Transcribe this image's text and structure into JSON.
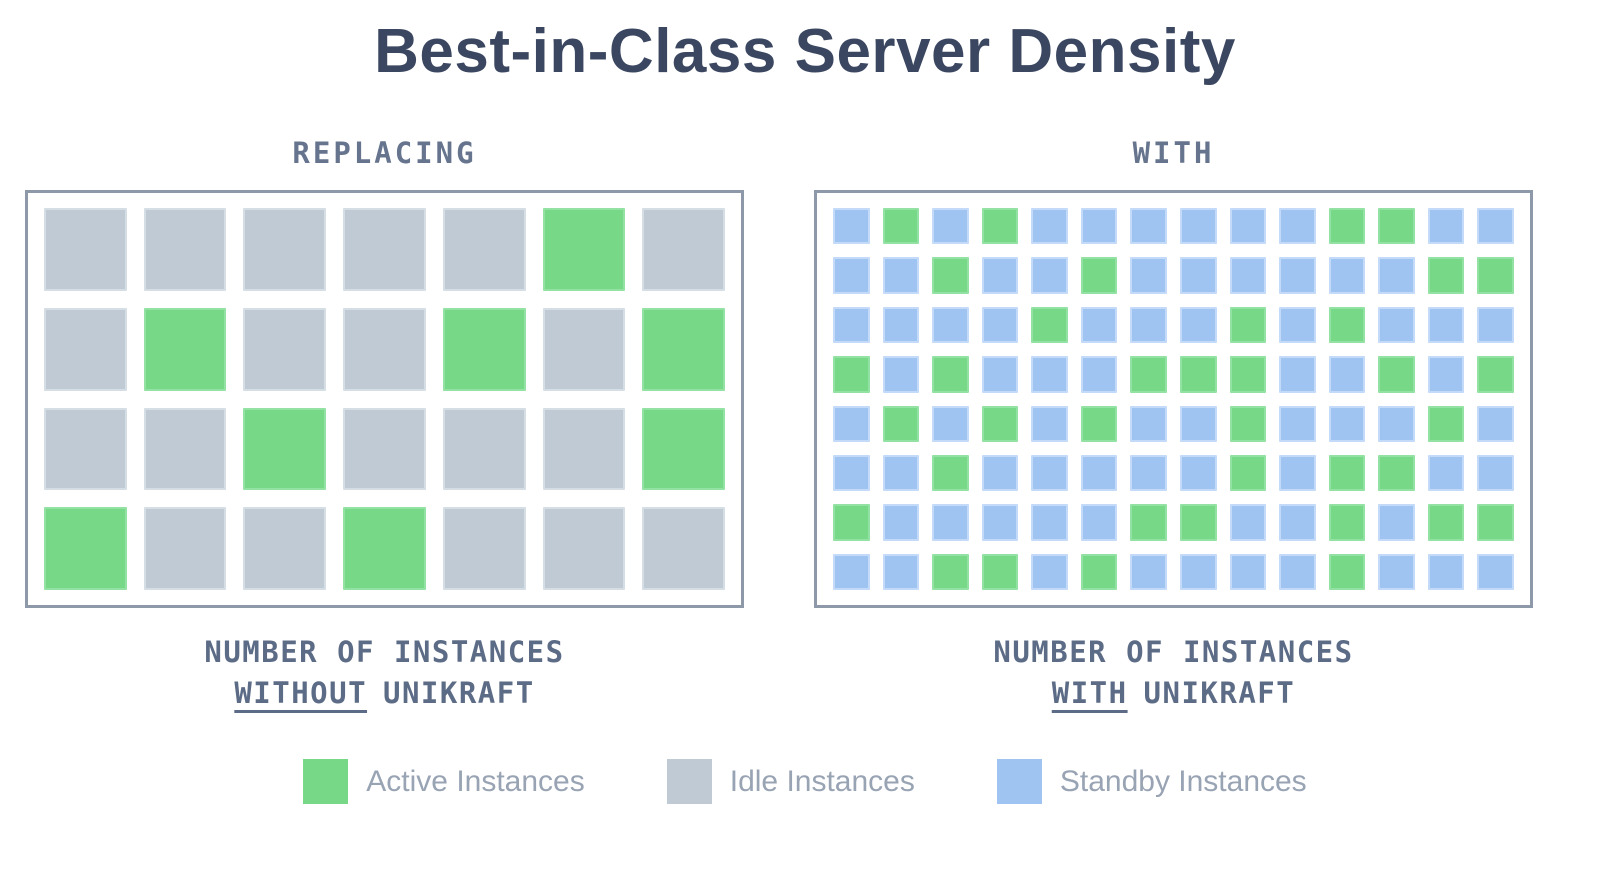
{
  "title": "Best-in-Class Server Density",
  "colors": {
    "active": "#77d987",
    "idle": "#bfcad4",
    "standby": "#9fc4f2",
    "grid_border": "#8d99a9",
    "title_text": "#3b4760",
    "header_text": "#66748e",
    "caption_text": "#5d6c86",
    "legend_text": "#98a3b3"
  },
  "panels": [
    {
      "header": "REPLACING",
      "caption_line1": "NUMBER OF INSTANCES",
      "caption_emphasis": "WITHOUT",
      "caption_suffix": "UNIKRAFT"
    },
    {
      "header": "WITH",
      "caption_line1": "NUMBER OF INSTANCES",
      "caption_emphasis": "WITH",
      "caption_suffix": "UNIKRAFT"
    }
  ],
  "legend": [
    {
      "type": "active",
      "label": "Active Instances"
    },
    {
      "type": "idle",
      "label": "Idle Instances"
    },
    {
      "type": "standby",
      "label": "Standby Instances"
    }
  ],
  "chart_data": [
    {
      "type": "waffle",
      "label": "REPLACING",
      "caption": "NUMBER OF INSTANCES WITHOUT UNIKRAFT",
      "columns": 7,
      "rows": 4,
      "cell_key": {
        "A": "Active Instances",
        "I": "Idle Instances",
        "S": "Standby Instances"
      },
      "cell_codes": [
        "IIIIIAI",
        "IAIIAIA",
        "IIAIIIA",
        "AIIAIII"
      ],
      "counts": {
        "active": 8,
        "idle": 20,
        "standby": 0
      },
      "total": 28
    },
    {
      "type": "waffle",
      "label": "WITH",
      "caption": "NUMBER OF INSTANCES WITH UNIKRAFT",
      "columns": 14,
      "rows": 8,
      "cell_key": {
        "A": "Active Instances",
        "I": "Idle Instances",
        "S": "Standby Instances"
      },
      "cell_codes": [
        "SASASSSSSSAASS",
        "SSASSASSSSSSAA",
        "SSSSASSSASASSS",
        "ASASSSAAASSASA",
        "SASASASSASSSAS",
        "SSASSSSSASAASS",
        "ASSSSSAASSASAA",
        "SSAASASSSSASSS"
      ],
      "counts": {
        "active": 37,
        "idle": 0,
        "standby": 75
      },
      "total": 112
    }
  ]
}
